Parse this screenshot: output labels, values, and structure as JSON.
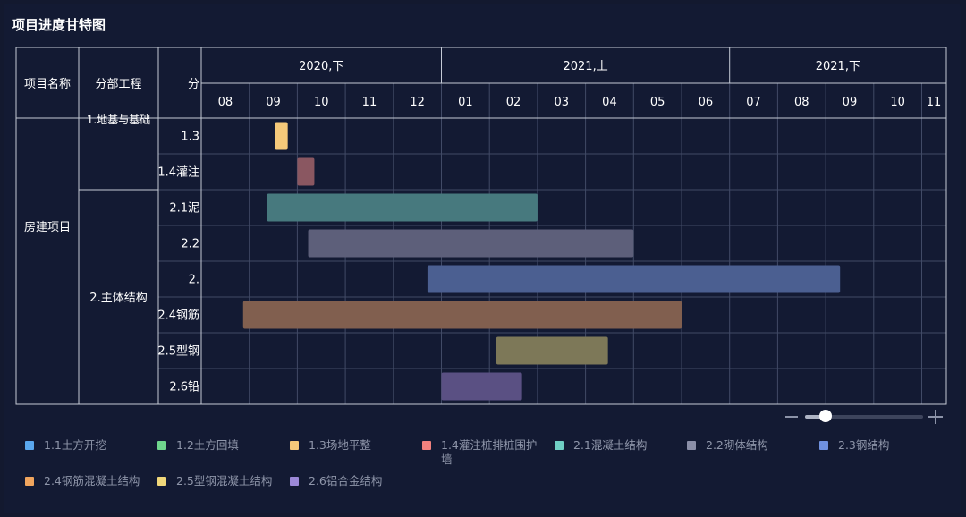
{
  "title": "项目进度甘特图",
  "chart_data": {
    "type": "gantt",
    "columns": {
      "project": "项目名称",
      "division": "分部工程",
      "subitem": "分"
    },
    "periods": [
      {
        "label": "2020,下",
        "months": [
          "08",
          "09",
          "10",
          "11",
          "12"
        ]
      },
      {
        "label": "2021,上",
        "months": [
          "01",
          "02",
          "03",
          "04",
          "05",
          "06"
        ]
      },
      {
        "label": "2021,下",
        "months": [
          "07",
          "08",
          "09",
          "10",
          "11"
        ]
      }
    ],
    "x_range": [
      "2020-08-01",
      "2021-11-20"
    ],
    "project": "房建项目",
    "divisions": [
      {
        "label": "1.地基与基础",
        "rows": 2
      },
      {
        "label": "2.主体结构",
        "rows": 6
      }
    ],
    "rows": [
      {
        "label": "1.3",
        "task": "1.3场地平整",
        "start": "2020-09-17",
        "end": "2020-09-25"
      },
      {
        "label": "1.4灌注",
        "task": "1.4灌注桩排桩围护墙",
        "start": "2020-10-01",
        "end": "2020-10-12"
      },
      {
        "label": "2.1泥",
        "task": "2.1混凝土结构",
        "start": "2020-09-12",
        "end": "2021-03-01"
      },
      {
        "label": "2.2",
        "task": "2.2砌体结构",
        "start": "2020-10-08",
        "end": "2021-05-01"
      },
      {
        "label": "2.",
        "task": "2.3钢结构",
        "start": "2020-12-23",
        "end": "2021-09-10"
      },
      {
        "label": "2.4钢筋",
        "task": "2.4钢筋混凝土结构",
        "start": "2020-08-28",
        "end": "2021-06-01"
      },
      {
        "label": "2.5型钢",
        "task": "2.5型钢混凝土结构",
        "start": "2021-02-05",
        "end": "2021-04-15"
      },
      {
        "label": "2.6铅",
        "task": "2.6铝合金结构",
        "start": "2021-01-01",
        "end": "2021-02-20"
      }
    ],
    "legend": [
      {
        "label": "1.1土方开挖",
        "color": "#5aa7ee"
      },
      {
        "label": "1.2土方回填",
        "color": "#6fd68d"
      },
      {
        "label": "1.3场地平整",
        "color": "#f5c97a"
      },
      {
        "label": "1.4灌注桩排桩围护墙",
        "color": "#f0817e"
      },
      {
        "label": "2.1混凝土结构",
        "color": "#6fcfc4"
      },
      {
        "label": "2.2砌体结构",
        "color": "#8b8fa8"
      },
      {
        "label": "2.3钢结构",
        "color": "#6f91e0"
      },
      {
        "label": "2.4钢筋混凝土结构",
        "color": "#f0a55e"
      },
      {
        "label": "2.5型钢混凝土结构",
        "color": "#f0d77a"
      },
      {
        "label": "2.6铝合金结构",
        "color": "#9c89d8"
      }
    ],
    "bar_colors": {
      "1.3场地平整": "#f5c97a",
      "1.4灌注桩排桩围护墙": "#8a5761",
      "2.1混凝土结构": "#47797e",
      "2.2砌体结构": "#5d5f7a",
      "2.3钢结构": "#4b5f91",
      "2.4钢筋混凝土结构": "#815f4f",
      "2.5型钢混凝土结构": "#7d7858",
      "2.6铝合金结构": "#5a5083"
    }
  }
}
